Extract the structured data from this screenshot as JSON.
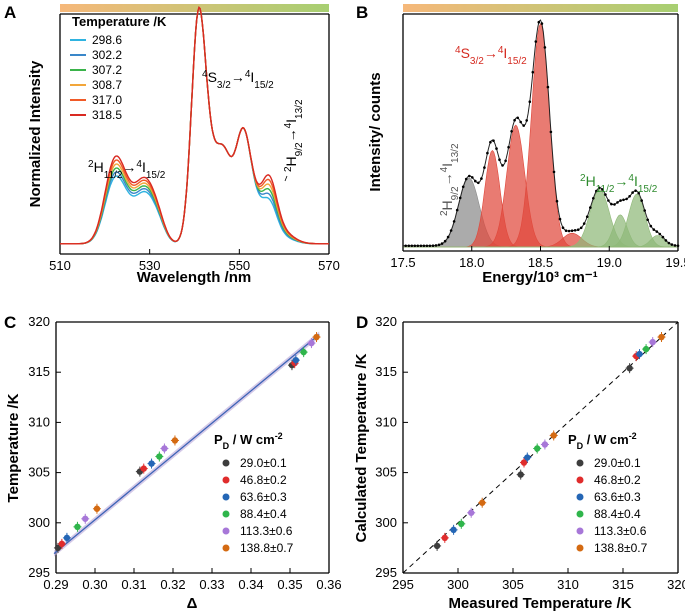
{
  "colors": {
    "bar_left": "#f6b87a",
    "bar_right": "#a7cf72",
    "T1": "#2fb3e0",
    "T2": "#3a87c9",
    "T3": "#3ab34a",
    "T4": "#f2a63a",
    "T5": "#f05a28",
    "T6": "#d92a22",
    "fit_red": "#e0483c",
    "fit_grey": "#8a8a8a",
    "fit_green": "#8fb978",
    "line_blue": "#3c63b6",
    "band_purple": "#b9a6d8",
    "s4_label": "#d52a20",
    "h2_label": "#2e8b2e",
    "dash": "#000000"
  },
  "chart_data": [
    {
      "panel": "A",
      "type": "line",
      "xlabel": "Wavelength /nm",
      "ylabel": "Normalized Intensity",
      "xlim": [
        510,
        570
      ],
      "xticks": [
        "510",
        "530",
        "550",
        "570"
      ],
      "legend_title": "Temperature /K",
      "series": [
        {
          "name": "298.6",
          "color_key": "T1"
        },
        {
          "name": "302.2",
          "color_key": "T2"
        },
        {
          "name": "307.2",
          "color_key": "T3"
        },
        {
          "name": "308.7",
          "color_key": "T4"
        },
        {
          "name": "317.0",
          "color_key": "T5"
        },
        {
          "name": "318.5",
          "color_key": "T6"
        }
      ],
      "annotations": {
        "h_main": "H",
        "h_sup_lead": "2",
        "h_sub": "11/2",
        "arrow": "→",
        "h_sup_end": "4",
        "h_end_main": "I",
        "h_end_sub": "15/2",
        "s_sup_lead": "4",
        "s_main": "S",
        "s_sub": "3/2",
        "s_sup_end": "4",
        "s_end_main": "I",
        "s_end_sub": "15/2",
        "h9_sup_lead": "2",
        "h9_main": "H",
        "h9_sub": "9/2",
        "h9_sup_end": "4",
        "h9_end_main": "I",
        "h9_end_sub": "13/2"
      }
    },
    {
      "panel": "B",
      "type": "line",
      "xlabel": "Energy/10³ cm⁻¹",
      "ylabel": "Intensity/ counts",
      "xlim": [
        17.5,
        19.5
      ],
      "xticks": [
        "17.5",
        "18.0",
        "18.5",
        "19.0",
        "19.5"
      ],
      "peaks": [
        {
          "center": 17.98,
          "group": "grey"
        },
        {
          "center": 18.15,
          "group": "red"
        },
        {
          "center": 18.32,
          "group": "red"
        },
        {
          "center": 18.5,
          "group": "red"
        },
        {
          "center": 18.73,
          "group": "red"
        },
        {
          "center": 18.93,
          "group": "green"
        },
        {
          "center": 19.08,
          "group": "green"
        },
        {
          "center": 19.2,
          "group": "green"
        },
        {
          "center": 19.35,
          "group": "green"
        }
      ]
    },
    {
      "panel": "C",
      "type": "scatter",
      "xlabel": "Δ",
      "ylabel": "Temperature /K",
      "xlim": [
        0.29,
        0.36
      ],
      "ylim": [
        295,
        320
      ],
      "xticks": [
        "0.29",
        "0.30",
        "0.31",
        "0.32",
        "0.33",
        "0.34",
        "0.35",
        "0.36"
      ],
      "yticks": [
        "295",
        "300",
        "305",
        "310",
        "315",
        "320"
      ],
      "legend_title": "P",
      "legend_title_sub": "D",
      "legend_title_rest": " / W cm",
      "legend_title_sup": "-2",
      "legend": [
        "29.0±0.1",
        "46.8±0.2",
        "63.6±0.3",
        "88.4±0.4",
        "113.3±0.6",
        "138.8±0.7"
      ],
      "points": [
        {
          "x": 0.2905,
          "y": 297.5,
          "s": 0
        },
        {
          "x": 0.2915,
          "y": 297.9,
          "s": 1
        },
        {
          "x": 0.2928,
          "y": 298.5,
          "s": 2
        },
        {
          "x": 0.2955,
          "y": 299.6,
          "s": 3
        },
        {
          "x": 0.2975,
          "y": 300.4,
          "s": 4
        },
        {
          "x": 0.3005,
          "y": 301.4,
          "s": 5
        },
        {
          "x": 0.3115,
          "y": 305.1,
          "s": 0
        },
        {
          "x": 0.3125,
          "y": 305.4,
          "s": 1
        },
        {
          "x": 0.3145,
          "y": 305.9,
          "s": 2
        },
        {
          "x": 0.3165,
          "y": 306.6,
          "s": 3
        },
        {
          "x": 0.3178,
          "y": 307.4,
          "s": 4
        },
        {
          "x": 0.3205,
          "y": 308.2,
          "s": 5
        },
        {
          "x": 0.3505,
          "y": 315.7,
          "s": 0
        },
        {
          "x": 0.3512,
          "y": 315.9,
          "s": 1
        },
        {
          "x": 0.3515,
          "y": 316.2,
          "s": 2
        },
        {
          "x": 0.3535,
          "y": 317.0,
          "s": 3
        },
        {
          "x": 0.3555,
          "y": 317.9,
          "s": 4
        },
        {
          "x": 0.3568,
          "y": 318.5,
          "s": 5
        }
      ]
    },
    {
      "panel": "D",
      "type": "scatter",
      "xlabel": "Measured  Temperature /K",
      "ylabel": "Calculated Temperature /K",
      "xlim": [
        295,
        320
      ],
      "ylim": [
        295,
        320
      ],
      "xticks": [
        "295",
        "300",
        "305",
        "310",
        "315",
        "320"
      ],
      "yticks": [
        "295",
        "300",
        "305",
        "310",
        "315",
        "320"
      ],
      "legend_title": "P",
      "legend_title_sub": "D",
      "legend_title_rest": " / W cm",
      "legend_title_sup": "-2",
      "legend": [
        "29.0±0.1",
        "46.8±0.2",
        "63.6±0.3",
        "88.4±0.4",
        "113.3±0.6",
        "138.8±0.7"
      ],
      "points": [
        {
          "x": 298.1,
          "y": 297.7,
          "s": 0
        },
        {
          "x": 298.8,
          "y": 298.5,
          "s": 1
        },
        {
          "x": 299.6,
          "y": 299.3,
          "s": 2
        },
        {
          "x": 300.3,
          "y": 299.9,
          "s": 3
        },
        {
          "x": 301.2,
          "y": 301.0,
          "s": 4
        },
        {
          "x": 302.2,
          "y": 302.0,
          "s": 5
        },
        {
          "x": 305.7,
          "y": 304.8,
          "s": 0
        },
        {
          "x": 306.0,
          "y": 306.0,
          "s": 1
        },
        {
          "x": 306.3,
          "y": 306.5,
          "s": 2
        },
        {
          "x": 307.2,
          "y": 307.4,
          "s": 3
        },
        {
          "x": 307.9,
          "y": 307.8,
          "s": 4
        },
        {
          "x": 308.7,
          "y": 308.7,
          "s": 5
        },
        {
          "x": 315.6,
          "y": 315.4,
          "s": 0
        },
        {
          "x": 316.2,
          "y": 316.6,
          "s": 1
        },
        {
          "x": 316.5,
          "y": 316.8,
          "s": 2
        },
        {
          "x": 317.1,
          "y": 317.3,
          "s": 3
        },
        {
          "x": 317.7,
          "y": 318.0,
          "s": 4
        },
        {
          "x": 318.5,
          "y": 318.5,
          "s": 5
        }
      ]
    }
  ],
  "panel_letters": [
    "A",
    "B",
    "C",
    "D"
  ],
  "scatter_colors": [
    "#3d3d3d",
    "#e02c2c",
    "#2466b5",
    "#2fb54b",
    "#a777d8",
    "#d46a12"
  ]
}
